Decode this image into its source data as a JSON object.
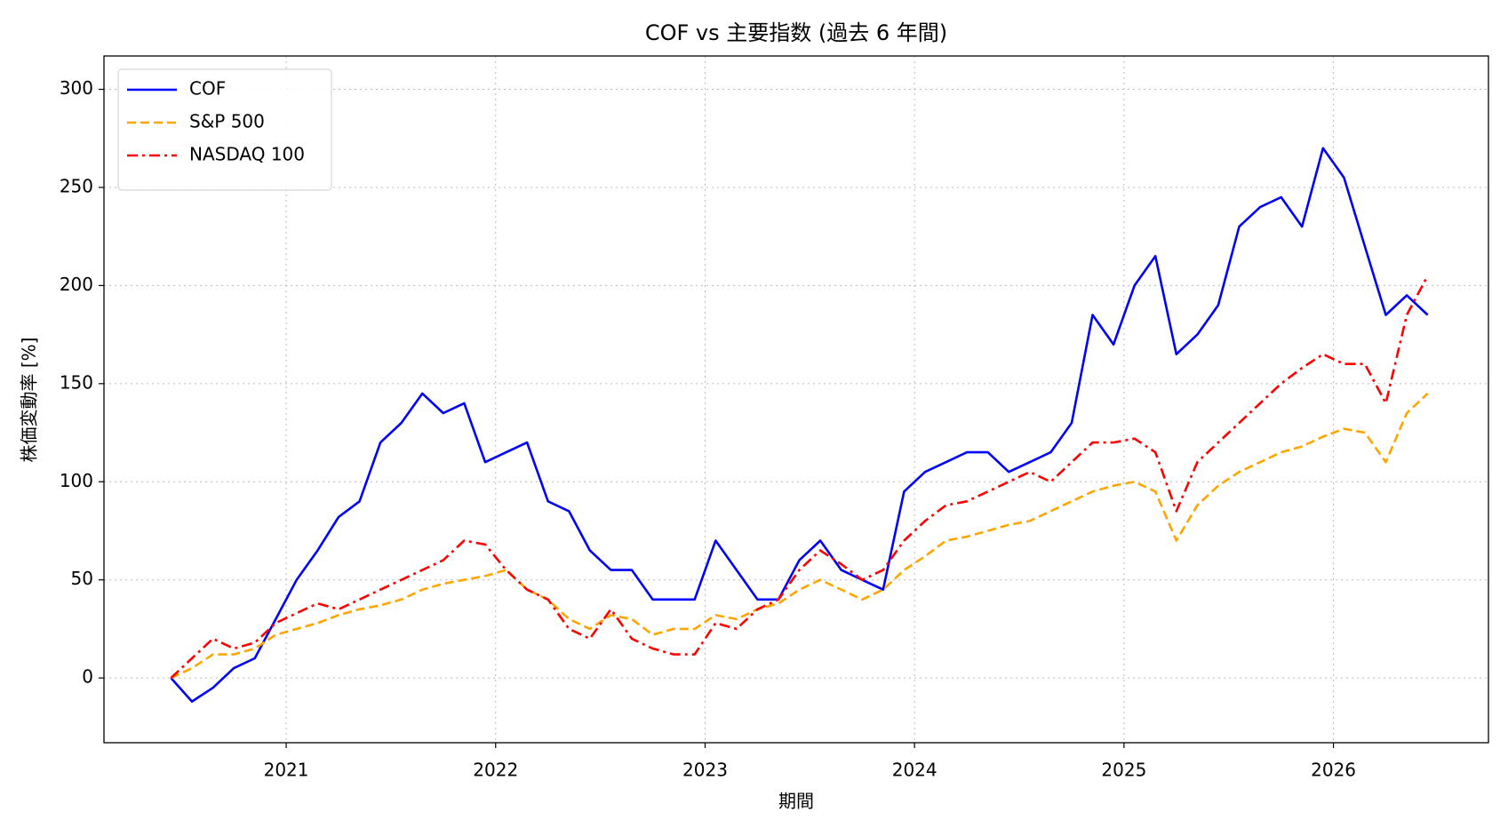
{
  "chart_data": {
    "type": "line",
    "title": "COF vs 主要指数 (過去 6 年間)",
    "xlabel": "期間",
    "ylabel": "株価変動率 [%]",
    "x": [
      2020.45,
      2020.55,
      2020.65,
      2020.75,
      2020.85,
      2020.95,
      2021.05,
      2021.15,
      2021.25,
      2021.35,
      2021.45,
      2021.55,
      2021.65,
      2021.75,
      2021.85,
      2021.95,
      2022.05,
      2022.15,
      2022.25,
      2022.35,
      2022.45,
      2022.55,
      2022.65,
      2022.75,
      2022.85,
      2022.95,
      2023.05,
      2023.15,
      2023.25,
      2023.35,
      2023.45,
      2023.55,
      2023.65,
      2023.75,
      2023.85,
      2023.95,
      2024.05,
      2024.15,
      2024.25,
      2024.35,
      2024.45,
      2024.55,
      2024.65,
      2024.75,
      2024.85,
      2024.95,
      2025.05,
      2025.15,
      2025.25,
      2025.35,
      2025.45,
      2025.55,
      2025.65,
      2025.75,
      2025.85,
      2025.95,
      2026.05,
      2026.15,
      2026.25,
      2026.35,
      2026.45
    ],
    "series": [
      {
        "name": "COF",
        "color": "#0000ff",
        "linestyle": "solid",
        "values": [
          0,
          -12,
          -5,
          5,
          10,
          30,
          50,
          65,
          82,
          90,
          120,
          130,
          145,
          135,
          140,
          110,
          115,
          120,
          90,
          85,
          65,
          55,
          55,
          40,
          40,
          40,
          70,
          55,
          40,
          40,
          60,
          70,
          55,
          50,
          45,
          95,
          105,
          110,
          115,
          115,
          105,
          110,
          115,
          130,
          185,
          170,
          200,
          215,
          165,
          175,
          190,
          230,
          240,
          245,
          230,
          270,
          255,
          220,
          185,
          195,
          185
        ]
      },
      {
        "name": "S&P 500",
        "color": "#ffa500",
        "linestyle": "dashed",
        "values": [
          0,
          5,
          12,
          12,
          15,
          22,
          25,
          28,
          32,
          35,
          37,
          40,
          45,
          48,
          50,
          52,
          55,
          45,
          40,
          30,
          25,
          32,
          30,
          22,
          25,
          25,
          32,
          30,
          35,
          38,
          45,
          50,
          45,
          40,
          45,
          55,
          62,
          70,
          72,
          75,
          78,
          80,
          85,
          90,
          95,
          98,
          100,
          95,
          70,
          88,
          98,
          105,
          110,
          115,
          118,
          123,
          127,
          125,
          110,
          135,
          145
        ]
      },
      {
        "name": "NASDAQ 100",
        "color": "#ff0000",
        "linestyle": "dashdot",
        "values": [
          0,
          10,
          20,
          15,
          18,
          28,
          33,
          38,
          35,
          40,
          45,
          50,
          55,
          60,
          70,
          68,
          55,
          45,
          40,
          25,
          20,
          35,
          20,
          15,
          12,
          12,
          28,
          25,
          35,
          40,
          55,
          65,
          58,
          50,
          55,
          70,
          80,
          88,
          90,
          95,
          100,
          105,
          100,
          110,
          120,
          120,
          122,
          115,
          85,
          110,
          120,
          130,
          140,
          150,
          158,
          165,
          160,
          160,
          140,
          185,
          205
        ]
      }
    ],
    "xlim": [
      2020.13,
      2026.74
    ],
    "xticks": [
      2021,
      2022,
      2023,
      2024,
      2025,
      2026
    ],
    "ylim": [
      -33,
      317
    ],
    "yticks": [
      0,
      50,
      100,
      150,
      200,
      250,
      300
    ],
    "grid": true,
    "legend": "upper left"
  }
}
